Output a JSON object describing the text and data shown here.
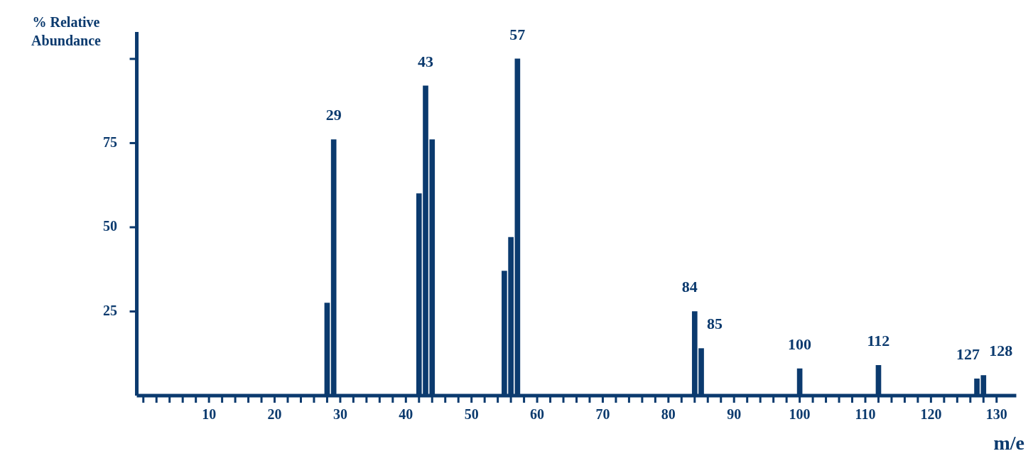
{
  "chart_data": {
    "type": "bar",
    "xlabel": "m/e",
    "ylabel": "% Relative Abundance",
    "x": [
      28,
      29,
      42,
      43,
      44,
      55,
      56,
      57,
      84,
      85,
      100,
      112,
      127,
      128
    ],
    "values": [
      27.5,
      76,
      60,
      92,
      76,
      37,
      47,
      100,
      25,
      14,
      8,
      9,
      5,
      6
    ],
    "color": "#0b3a6e",
    "xlim": [
      -1,
      133
    ],
    "xticks": [
      {
        "value": 0,
        "label": null
      },
      {
        "value": 2,
        "label": null
      },
      {
        "value": 4,
        "label": null
      },
      {
        "value": 6,
        "label": null
      },
      {
        "value": 8,
        "label": null
      },
      10,
      {
        "value": 12,
        "label": null
      },
      {
        "value": 14,
        "label": null
      },
      {
        "value": 16,
        "label": null
      },
      {
        "value": 18,
        "label": null
      },
      20,
      {
        "value": 22,
        "label": null
      },
      {
        "value": 24,
        "label": null
      },
      {
        "value": 26,
        "label": null
      },
      {
        "value": 28,
        "label": null
      },
      30,
      {
        "value": 32,
        "label": null
      },
      {
        "value": 34,
        "label": null
      },
      {
        "value": 36,
        "label": null
      },
      {
        "value": 38,
        "label": null
      },
      40,
      {
        "value": 42,
        "label": null
      },
      {
        "value": 44,
        "label": null
      },
      {
        "value": 46,
        "label": null
      },
      {
        "value": 48,
        "label": null
      },
      50,
      {
        "value": 52,
        "label": null
      },
      {
        "value": 54,
        "label": null
      },
      {
        "value": 56,
        "label": null
      },
      {
        "value": 58,
        "label": null
      },
      60,
      {
        "value": 62,
        "label": null
      },
      {
        "value": 64,
        "label": null
      },
      {
        "value": 66,
        "label": null
      },
      {
        "value": 68,
        "label": null
      },
      70,
      {
        "value": 72,
        "label": null
      },
      {
        "value": 74,
        "label": null
      },
      {
        "value": 76,
        "label": null
      },
      {
        "value": 78,
        "label": null
      },
      80,
      {
        "value": 82,
        "label": null
      },
      {
        "value": 84,
        "label": null
      },
      {
        "value": 86,
        "label": null
      },
      {
        "value": 88,
        "label": null
      },
      90,
      {
        "value": 92,
        "label": null
      },
      {
        "value": 94,
        "label": null
      },
      {
        "value": 96,
        "label": null
      },
      {
        "value": 98,
        "label": null
      },
      100,
      {
        "value": 102,
        "label": null
      },
      {
        "value": 104,
        "label": null
      },
      {
        "value": 106,
        "label": null
      },
      {
        "value": 108,
        "label": null
      },
      110,
      {
        "value": 112,
        "label": null
      },
      {
        "value": 114,
        "label": null
      },
      {
        "value": 116,
        "label": null
      },
      {
        "value": 118,
        "label": null
      },
      120,
      {
        "value": 122,
        "label": null
      },
      {
        "value": 124,
        "label": null
      },
      {
        "value": 126,
        "label": null
      },
      {
        "value": 128,
        "label": null
      },
      130
    ],
    "ylim": [
      0,
      108
    ],
    "yticks": [
      25,
      50,
      75,
      {
        "value": 100,
        "label": null
      }
    ],
    "grid": false,
    "legend": false,
    "annotations": [
      {
        "text": "29",
        "x": 29,
        "y": 76
      },
      {
        "text": "43",
        "x": 43,
        "y": 92
      },
      {
        "text": "57",
        "x": 57,
        "y": 100
      },
      {
        "text": "84",
        "x": 84,
        "y": 25
      },
      {
        "text": "85",
        "x": 85,
        "y": 14
      },
      {
        "text": "100",
        "x": 100,
        "y": 8
      },
      {
        "text": "112",
        "x": 112,
        "y": 9
      },
      {
        "text": "127",
        "x": 127,
        "y": 5
      },
      {
        "text": "128",
        "x": 128,
        "y": 6
      }
    ]
  }
}
